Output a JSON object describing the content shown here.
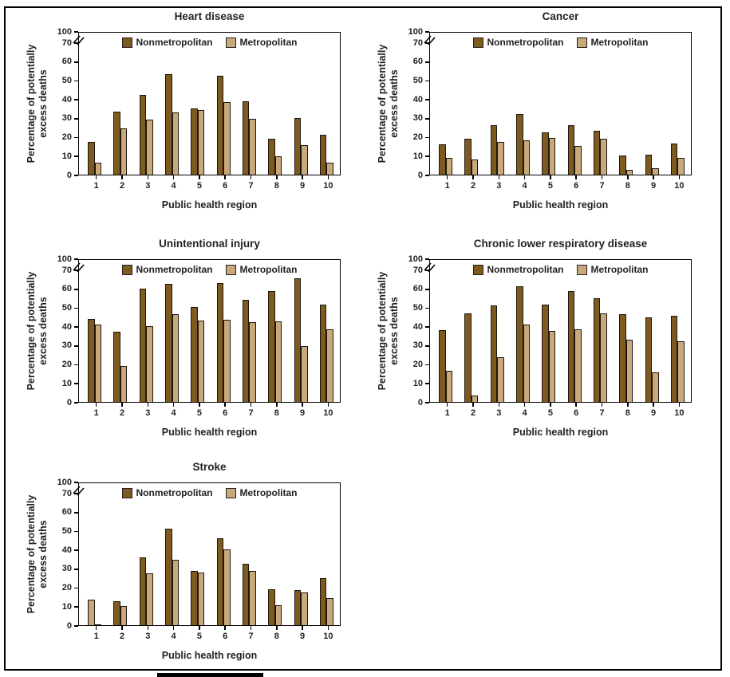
{
  "figure": {
    "ylabel_lines": [
      "Percentage of potentially",
      "excess deaths"
    ],
    "xlabel": "Public health region",
    "legend_labels": [
      "Nonmetropolitan",
      "Metropolitan"
    ],
    "y_ticks": [
      100,
      70,
      60,
      50,
      40,
      30,
      20,
      10,
      0
    ],
    "y_tick_labels": [
      "100",
      "70",
      "60",
      "50",
      "40",
      "30",
      "20",
      "10",
      "0"
    ],
    "colors": {
      "nonmetropolitan": "#7e5a1e",
      "metropolitan": "#c9a87c",
      "bar_outline": "#1c1710",
      "axis": "#000000",
      "text": "#231f20"
    },
    "axis_break_between": [
      70,
      100
    ],
    "note": "In the Stroke panel, region 1 bars appear with swapped fill colors in the source image (tan bar ~13.5 in left slot, dark sliver ~0.5 in right slot)."
  },
  "chart_data": [
    {
      "type": "bar",
      "title": "Heart disease",
      "xlabel": "Public health region",
      "ylabel": "Percentage of potentially excess deaths",
      "ylim": [
        0,
        100
      ],
      "grid": false,
      "legend_position": "top-center",
      "categories": [
        "1",
        "2",
        "3",
        "4",
        "5",
        "6",
        "7",
        "8",
        "9",
        "10"
      ],
      "series": [
        {
          "name": "Nonmetropolitan",
          "values": [
            17.5,
            33.5,
            42,
            53,
            35,
            52.5,
            39,
            19,
            30,
            21
          ]
        },
        {
          "name": "Metropolitan",
          "values": [
            6.5,
            24.5,
            29,
            33,
            34,
            38.5,
            29.5,
            9.5,
            15.5,
            6.5
          ]
        }
      ]
    },
    {
      "type": "bar",
      "title": "Cancer",
      "xlabel": "Public health region",
      "ylabel": "Percentage of potentially excess deaths",
      "ylim": [
        0,
        100
      ],
      "grid": false,
      "legend_position": "top-center",
      "categories": [
        "1",
        "2",
        "3",
        "4",
        "5",
        "6",
        "7",
        "8",
        "9",
        "10"
      ],
      "series": [
        {
          "name": "Nonmetropolitan",
          "values": [
            16,
            19,
            26,
            32,
            22.5,
            26,
            23,
            10,
            10.5,
            16.5
          ]
        },
        {
          "name": "Metropolitan",
          "values": [
            9,
            8,
            17.5,
            18,
            19.5,
            15,
            19,
            2.5,
            3.5,
            9
          ]
        }
      ]
    },
    {
      "type": "bar",
      "title": "Unintentional injury",
      "xlabel": "Public health region",
      "ylabel": "Percentage of potentially excess deaths",
      "ylim": [
        0,
        100
      ],
      "grid": false,
      "legend_position": "top-center",
      "categories": [
        "1",
        "2",
        "3",
        "4",
        "5",
        "6",
        "7",
        "8",
        "9",
        "10"
      ],
      "series": [
        {
          "name": "Nonmetropolitan",
          "values": [
            44,
            37,
            60,
            62.5,
            50,
            63,
            54,
            58.5,
            65.5,
            51.5
          ]
        },
        {
          "name": "Metropolitan",
          "values": [
            41,
            19,
            40,
            46.5,
            43,
            43.5,
            42,
            42.5,
            29.5,
            38.5
          ]
        }
      ]
    },
    {
      "type": "bar",
      "title": "Chronic lower respiratory disease",
      "xlabel": "Public health region",
      "ylabel": "Percentage of potentially excess deaths",
      "ylim": [
        0,
        100
      ],
      "grid": false,
      "legend_position": "top-center",
      "categories": [
        "1",
        "2",
        "3",
        "4",
        "5",
        "6",
        "7",
        "8",
        "9",
        "10"
      ],
      "series": [
        {
          "name": "Nonmetropolitan",
          "values": [
            38,
            47,
            51,
            61,
            51.5,
            58.5,
            55,
            46.5,
            44.5,
            45.5
          ]
        },
        {
          "name": "Metropolitan",
          "values": [
            16.5,
            3.5,
            23.5,
            41,
            37.5,
            38.5,
            47,
            33,
            15.5,
            32
          ]
        }
      ]
    },
    {
      "type": "bar",
      "title": "Stroke",
      "xlabel": "Public health region",
      "ylabel": "Percentage of potentially excess deaths",
      "ylim": [
        0,
        100
      ],
      "grid": false,
      "legend_position": "top-center",
      "categories": [
        "1",
        "2",
        "3",
        "4",
        "5",
        "6",
        "7",
        "8",
        "9",
        "10"
      ],
      "color_swap_groups": [
        0
      ],
      "series": [
        {
          "name": "Nonmetropolitan",
          "values": [
            13.5,
            12.5,
            36,
            51,
            28.5,
            46,
            32.5,
            19,
            18.5,
            25
          ]
        },
        {
          "name": "Metropolitan",
          "values": [
            0.5,
            10,
            27.5,
            34.5,
            28,
            40,
            28.5,
            10.5,
            17.5,
            14.5
          ]
        }
      ]
    }
  ]
}
